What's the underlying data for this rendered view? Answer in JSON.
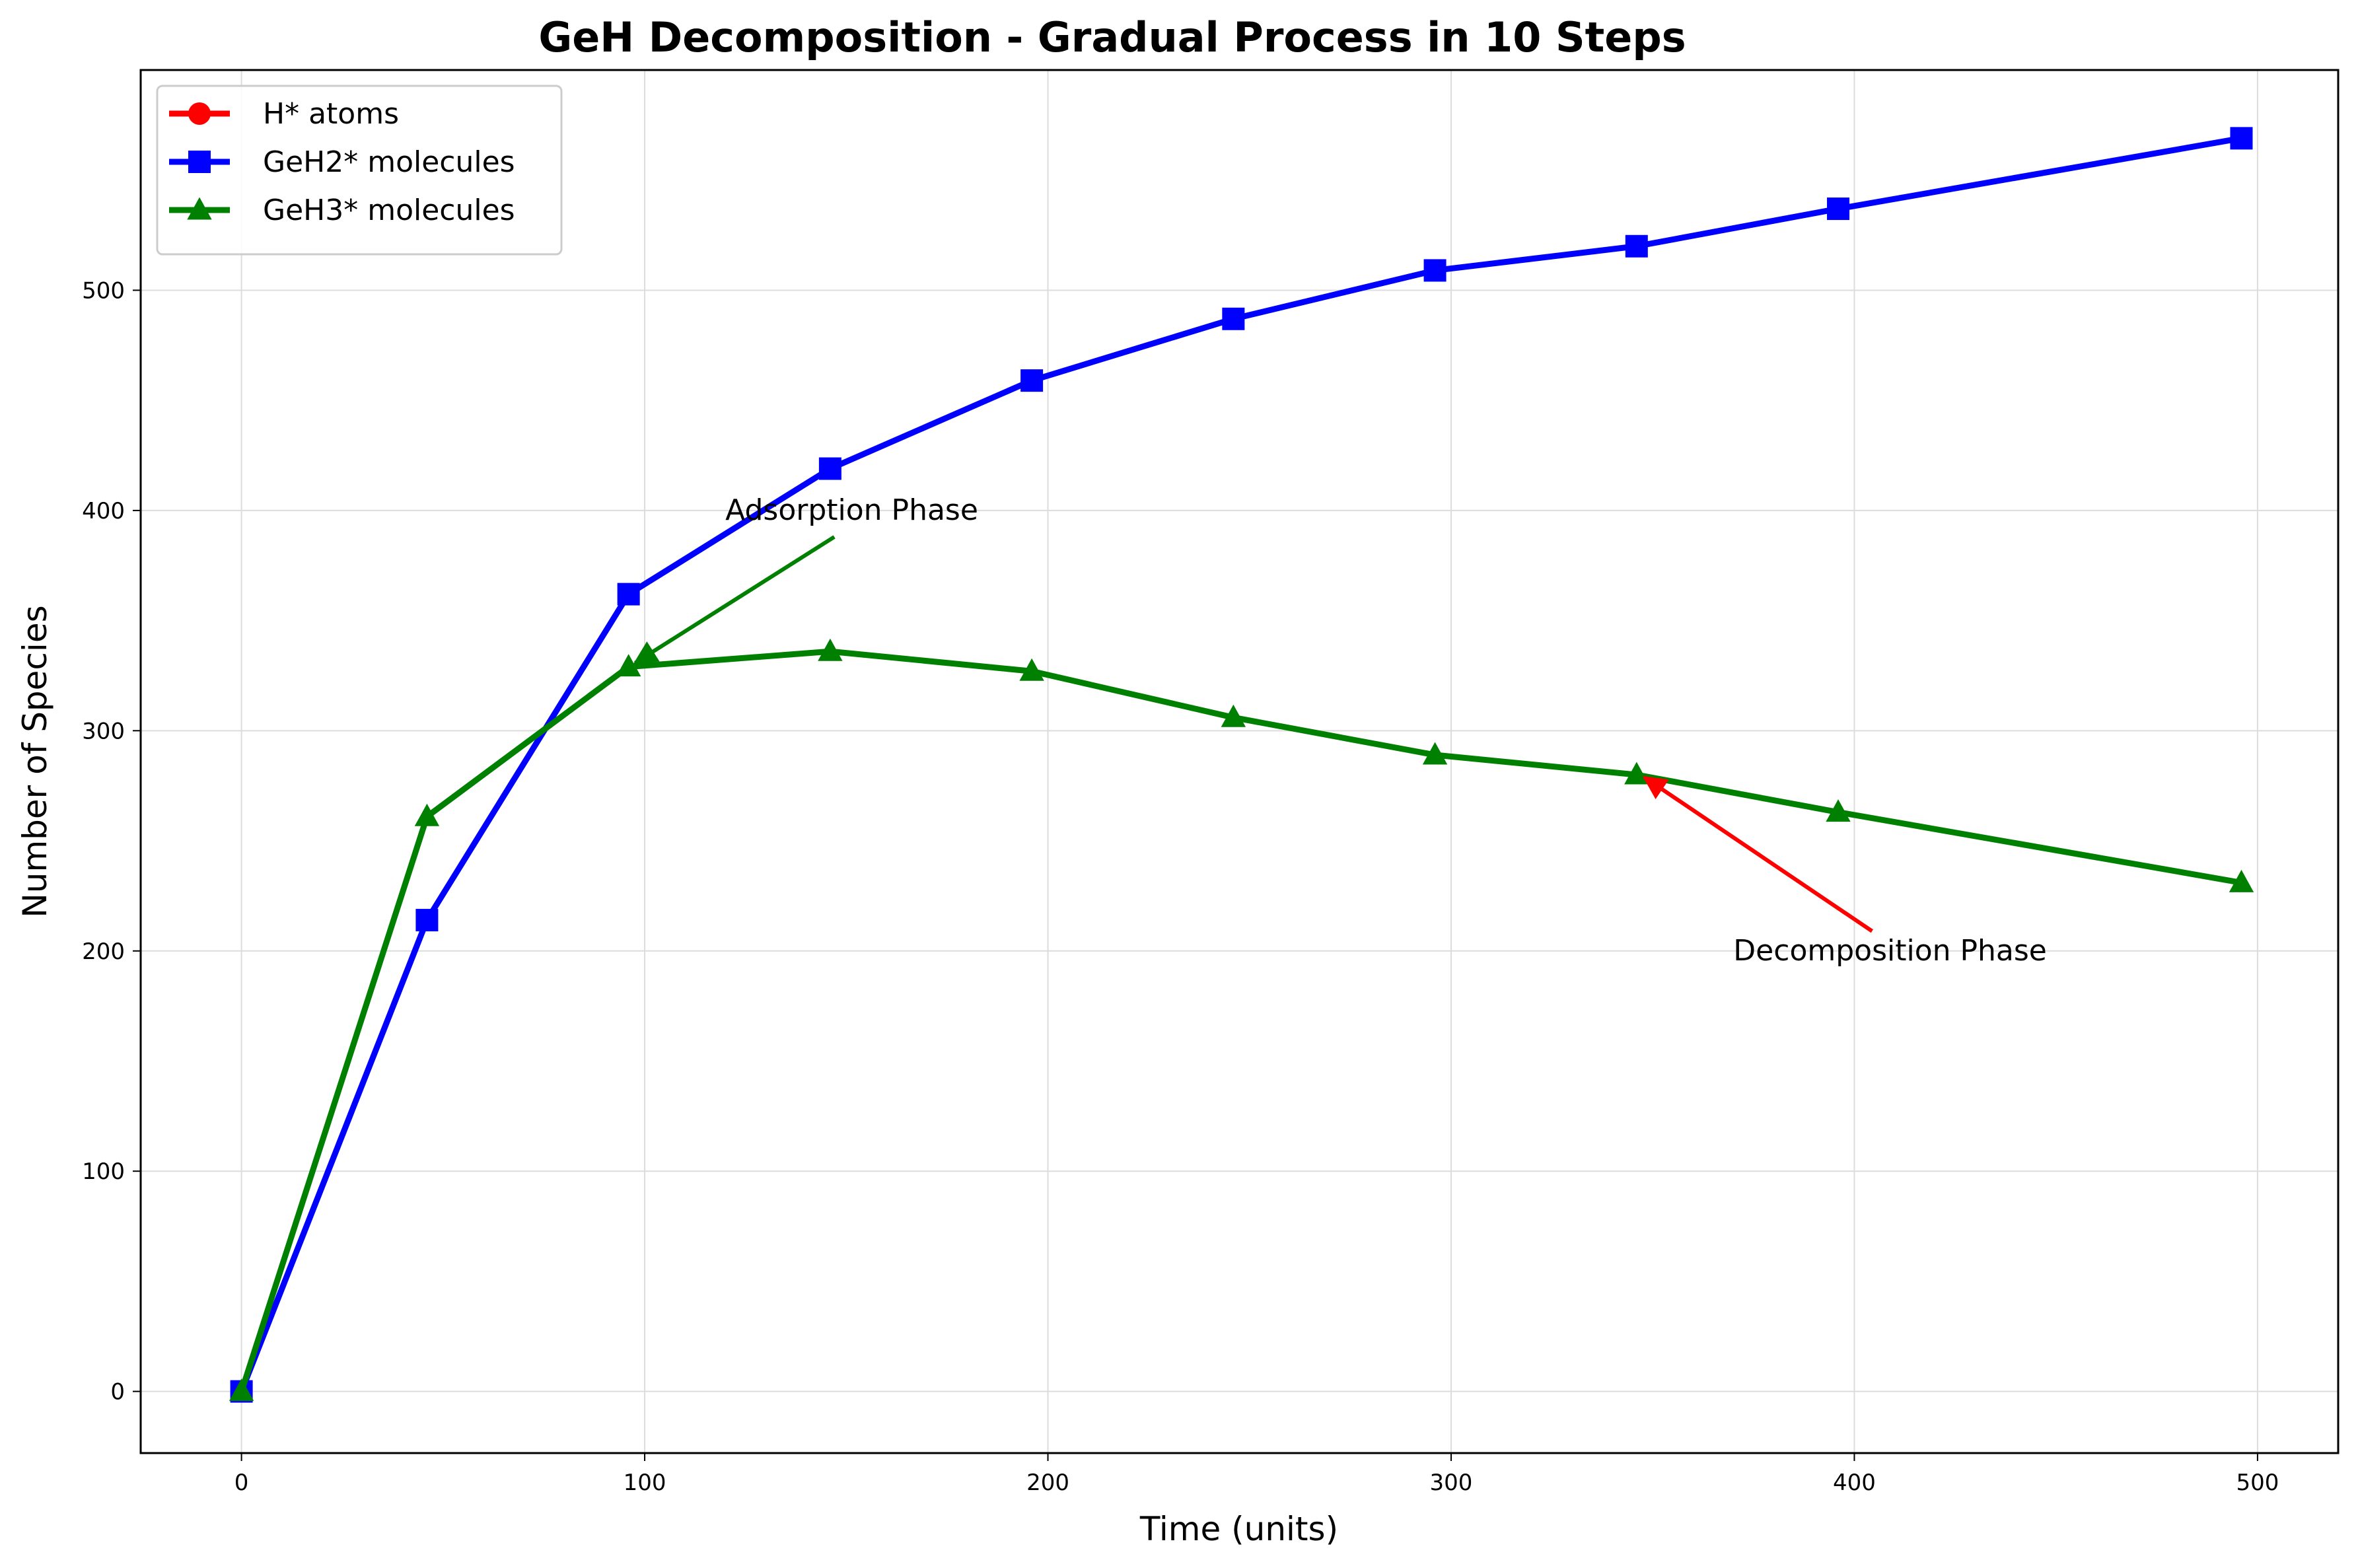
{
  "chart_data": {
    "type": "line",
    "title": "GeH Decomposition - Gradual Process in 10 Steps",
    "xlabel": "Time (units)",
    "ylabel": "Number of Species",
    "xlim": [
      -25,
      520
    ],
    "ylim": [
      -28,
      600
    ],
    "xticks": [
      0,
      100,
      200,
      300,
      400,
      500
    ],
    "yticks": [
      0,
      100,
      200,
      300,
      400,
      500
    ],
    "grid": true,
    "legend_position": "top-left",
    "x": [
      0,
      46,
      96,
      146,
      196,
      246,
      296,
      346,
      396,
      496
    ],
    "series": [
      {
        "name": "H* atoms",
        "color": "#ff0000",
        "marker": "circle",
        "values": [
          0,
          0,
          0,
          0,
          0,
          0,
          0,
          0,
          0,
          0
        ],
        "visible": false
      },
      {
        "name": "GeH2* molecules",
        "color": "#0000ff",
        "marker": "square",
        "values": [
          0,
          214,
          362,
          419,
          459,
          487,
          509,
          520,
          537,
          569
        ]
      },
      {
        "name": "GeH3* molecules",
        "color": "#008000",
        "marker": "triangle",
        "values": [
          0,
          261,
          329,
          336,
          327,
          306,
          289,
          280,
          263,
          231
        ]
      }
    ],
    "annotations": [
      {
        "text": "Adsorption Phase",
        "color": "#008000",
        "text_at": [
          120,
          400
        ],
        "point_to": [
          96,
          329
        ]
      },
      {
        "text": "Decomposition Phase",
        "color": "#ff0000",
        "text_at": [
          370,
          200
        ],
        "point_to": [
          346,
          280
        ]
      }
    ]
  }
}
